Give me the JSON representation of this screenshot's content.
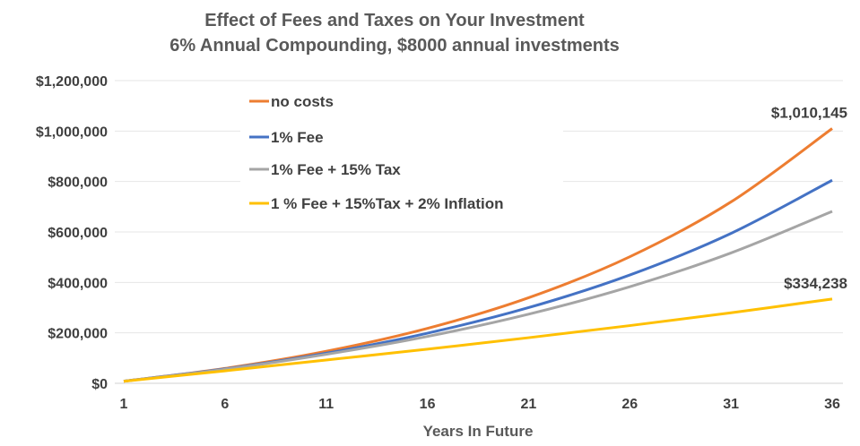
{
  "chart_data": {
    "type": "line",
    "title": [
      "Effect of Fees and Taxes on Your Investment",
      "6% Annual Compounding, $8000 annual investments"
    ],
    "xlabel": "Years In Future",
    "ylabel": "",
    "x": [
      1,
      6,
      11,
      16,
      21,
      26,
      31,
      36
    ],
    "x_ticks": [
      "1",
      "6",
      "11",
      "16",
      "21",
      "26",
      "31",
      "36"
    ],
    "xlim": [
      1,
      36
    ],
    "ylim": [
      0,
      1200000
    ],
    "y_ticks": [
      0,
      200000,
      400000,
      600000,
      800000,
      1000000,
      1200000
    ],
    "y_tick_labels": [
      "$0",
      "$200,000",
      "$400,000",
      "$600,000",
      "$800,000",
      "$1,000,000",
      "$1,200,000"
    ],
    "grid": "horizontal",
    "legend_position": "top-left",
    "series": [
      {
        "name": "no costs",
        "color": "#ED7D31",
        "values": [
          8480,
          59151,
          126964,
          217704,
          339140,
          501645,
          719117,
          1010145
        ]
      },
      {
        "name": "1% Fee",
        "color": "#4472C4",
        "values": [
          8400,
          57136,
          119337,
          198722,
          300041,
          429353,
          594391,
          805026
        ]
      },
      {
        "name": "1% Fee + 15% Tax",
        "color": "#A5A5A5",
        "values": [
          8340,
          55670,
          114946,
          185703,
          274069,
          382882,
          516870,
          681830
        ]
      },
      {
        "name": "1 % Fee + 15%Tax + 2% Inflation",
        "color": "#FFC000",
        "values": [
          8176,
          49433,
          92446,
          135274,
          180824,
          228803,
          279754,
          334238
        ]
      }
    ],
    "annotations": [
      {
        "text": "$1,010,145",
        "series": 0,
        "x": 36
      },
      {
        "text": "$334,238",
        "series": 3,
        "x": 36
      }
    ]
  }
}
